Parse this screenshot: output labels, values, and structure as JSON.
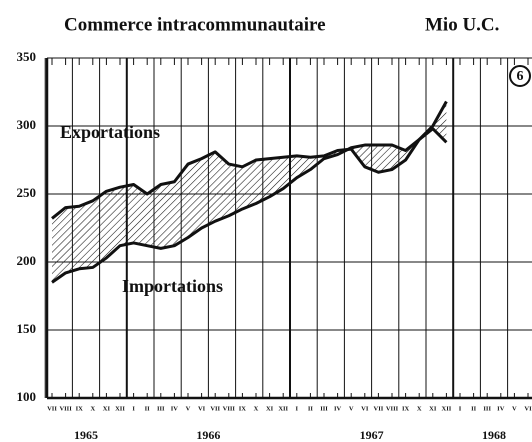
{
  "chart_data": {
    "type": "line",
    "title": "Commerce intracommunautaire",
    "unit": "Mio U.C.",
    "badge": "6",
    "categories": [
      "VII",
      "VIII",
      "IX",
      "X",
      "XI",
      "XII",
      "I",
      "II",
      "III",
      "IV",
      "V",
      "VI",
      "VII",
      "VIII",
      "IX",
      "X",
      "XI",
      "XII",
      "I",
      "II",
      "III",
      "IV",
      "V",
      "VI",
      "VII",
      "VIII",
      "IX",
      "X",
      "XI",
      "XII",
      "I",
      "II",
      "III",
      "IV",
      "V",
      "VI"
    ],
    "years": [
      {
        "label": "1965",
        "from": 0,
        "to": 5
      },
      {
        "label": "1966",
        "from": 6,
        "to": 17
      },
      {
        "label": "1967",
        "from": 18,
        "to": 29
      },
      {
        "label": "1968",
        "from": 30,
        "to": 35
      }
    ],
    "series": [
      {
        "name": "Exportations",
        "color": "#111111",
        "values": [
          232,
          240,
          241,
          245,
          252,
          255,
          257,
          250,
          257,
          259,
          272,
          276,
          281,
          272,
          270,
          275,
          276,
          277,
          278,
          277,
          278,
          282,
          283,
          270,
          266,
          268,
          275,
          290,
          300,
          318,
          null,
          null,
          null,
          null,
          null,
          null
        ]
      },
      {
        "name": "Importations",
        "color": "#111111",
        "values": [
          185,
          192,
          195,
          196,
          203,
          212,
          214,
          212,
          210,
          212,
          218,
          225,
          230,
          234,
          239,
          243,
          248,
          254,
          262,
          268,
          276,
          279,
          284,
          286,
          286,
          286,
          282,
          290,
          298,
          288,
          null,
          null,
          null,
          null,
          null,
          null
        ]
      }
    ],
    "ylim": [
      100,
      350
    ],
    "yticks": [
      100,
      150,
      200,
      250,
      300,
      350
    ],
    "grid": true
  }
}
